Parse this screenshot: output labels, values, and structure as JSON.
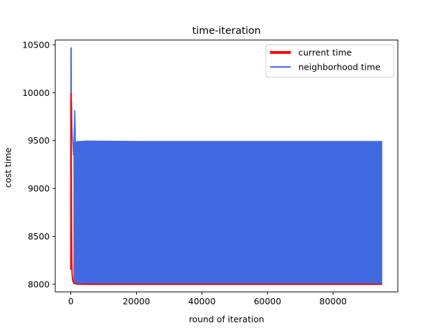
{
  "chart_data": {
    "type": "line",
    "title": "time-iteration",
    "xlabel": "round of iteration",
    "ylabel": "cost time",
    "xlim": [
      -4750,
      99750
    ],
    "ylim": [
      7920,
      10550
    ],
    "xticks": [
      0,
      20000,
      40000,
      60000,
      80000
    ],
    "yticks": [
      8000,
      8500,
      9000,
      9500,
      10000,
      10500
    ],
    "legend": "upper right",
    "grid": false,
    "series": [
      {
        "name": "current time",
        "color": "#ff0000",
        "x": [
          0,
          30,
          60,
          100,
          150,
          200,
          300,
          400,
          600,
          800,
          1000,
          1500,
          2000,
          3000,
          5000,
          10000,
          20000,
          40000,
          60000,
          80000,
          95000
        ],
        "y": [
          8150,
          9990,
          9850,
          9600,
          9100,
          8600,
          8250,
          8100,
          8040,
          8020,
          8010,
          8005,
          8002,
          8001,
          8000,
          8000,
          8000,
          8000,
          8000,
          8000,
          8000
        ]
      },
      {
        "name": "neighborhood time",
        "color": "#4169e1",
        "x": [
          0,
          30,
          80,
          120,
          180,
          250,
          350,
          450,
          600,
          800,
          1000,
          1200,
          1400,
          1600,
          2000,
          3000,
          5000,
          20000,
          40000,
          60000,
          65900,
          80000,
          95000
        ],
        "y": [
          8200,
          10460,
          9800,
          10470,
          9700,
          9900,
          9650,
          9550,
          9500,
          9350,
          9500,
          9810,
          9500,
          9350,
          9490,
          9490,
          9495,
          9490,
          9490,
          9490,
          9490,
          9490,
          9490
        ],
        "band_low": 8000,
        "band_high": 9490,
        "band_start": 800,
        "band_end": 95000
      }
    ]
  }
}
